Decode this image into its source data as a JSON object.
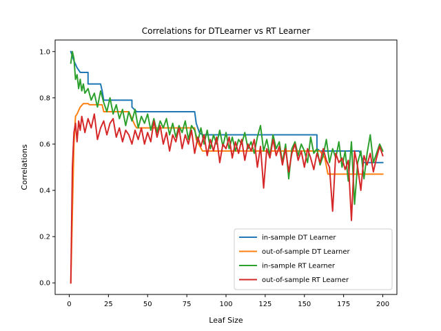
{
  "chart_data": {
    "type": "line",
    "title": "Correlations for DTLearner vs RT Learner",
    "xlabel": "Leaf Size",
    "ylabel": "Correlations",
    "xlim": [
      -9,
      209
    ],
    "ylim": [
      -0.05,
      1.05
    ],
    "xticks": [
      0,
      25,
      50,
      75,
      100,
      125,
      150,
      175,
      200
    ],
    "yticks": [
      0.0,
      0.2,
      0.4,
      0.6,
      0.8,
      1.0
    ],
    "xtick_labels": [
      "0",
      "25",
      "50",
      "75",
      "100",
      "125",
      "150",
      "175",
      "200"
    ],
    "ytick_labels": [
      "0.0",
      "0.2",
      "0.4",
      "0.6",
      "0.8",
      "1.0"
    ],
    "grid": false,
    "legend_position": "lower-right",
    "series": [
      {
        "name": "in-sample DT Learner",
        "color": "#1f77b4",
        "points": [
          [
            1,
            1.0
          ],
          [
            3,
            0.96
          ],
          [
            5,
            0.93
          ],
          [
            7,
            0.91
          ],
          [
            12,
            0.91
          ],
          [
            12,
            0.86
          ],
          [
            20,
            0.86
          ],
          [
            21,
            0.83
          ],
          [
            22,
            0.79
          ],
          [
            40,
            0.79
          ],
          [
            40,
            0.76
          ],
          [
            43,
            0.74
          ],
          [
            80,
            0.74
          ],
          [
            81,
            0.69
          ],
          [
            83,
            0.65
          ],
          [
            85,
            0.64
          ],
          [
            158,
            0.64
          ],
          [
            158,
            0.58
          ],
          [
            160,
            0.57
          ],
          [
            185,
            0.57
          ],
          [
            188,
            0.52
          ],
          [
            200,
            0.52
          ]
        ]
      },
      {
        "name": "out-of-sample DT Learner",
        "color": "#ff7f0e",
        "points": [
          [
            1,
            0.0
          ],
          [
            3,
            0.6
          ],
          [
            4,
            0.72
          ],
          [
            5,
            0.73
          ],
          [
            7,
            0.76
          ],
          [
            9,
            0.775
          ],
          [
            12,
            0.775
          ],
          [
            13,
            0.77
          ],
          [
            21,
            0.77
          ],
          [
            22,
            0.74
          ],
          [
            38,
            0.74
          ],
          [
            40,
            0.71
          ],
          [
            42,
            0.68
          ],
          [
            43,
            0.67
          ],
          [
            80,
            0.67
          ],
          [
            81,
            0.62
          ],
          [
            85,
            0.57
          ],
          [
            160,
            0.57
          ],
          [
            163,
            0.54
          ],
          [
            165,
            0.47
          ],
          [
            200,
            0.47
          ]
        ]
      },
      {
        "name": "in-sample RT Learner",
        "color": "#2ca02c",
        "points": [
          [
            1,
            0.95
          ],
          [
            2,
            1.0
          ],
          [
            3,
            0.97
          ],
          [
            4,
            0.88
          ],
          [
            5,
            0.9
          ],
          [
            6,
            0.84
          ],
          [
            7,
            0.88
          ],
          [
            8,
            0.83
          ],
          [
            9,
            0.86
          ],
          [
            10,
            0.82
          ],
          [
            12,
            0.84
          ],
          [
            14,
            0.79
          ],
          [
            16,
            0.82
          ],
          [
            18,
            0.76
          ],
          [
            20,
            0.83
          ],
          [
            22,
            0.78
          ],
          [
            24,
            0.74
          ],
          [
            26,
            0.8
          ],
          [
            28,
            0.73
          ],
          [
            30,
            0.77
          ],
          [
            32,
            0.71
          ],
          [
            34,
            0.75
          ],
          [
            36,
            0.68
          ],
          [
            38,
            0.74
          ],
          [
            40,
            0.7
          ],
          [
            42,
            0.75
          ],
          [
            44,
            0.67
          ],
          [
            46,
            0.72
          ],
          [
            48,
            0.69
          ],
          [
            50,
            0.73
          ],
          [
            52,
            0.66
          ],
          [
            54,
            0.71
          ],
          [
            56,
            0.65
          ],
          [
            58,
            0.7
          ],
          [
            60,
            0.67
          ],
          [
            62,
            0.71
          ],
          [
            64,
            0.64
          ],
          [
            66,
            0.69
          ],
          [
            68,
            0.63
          ],
          [
            70,
            0.68
          ],
          [
            72,
            0.65
          ],
          [
            74,
            0.7
          ],
          [
            76,
            0.62
          ],
          [
            78,
            0.68
          ],
          [
            80,
            0.66
          ],
          [
            82,
            0.61
          ],
          [
            84,
            0.67
          ],
          [
            86,
            0.6
          ],
          [
            88,
            0.66
          ],
          [
            90,
            0.58
          ],
          [
            92,
            0.64
          ],
          [
            94,
            0.6
          ],
          [
            96,
            0.66
          ],
          [
            98,
            0.59
          ],
          [
            100,
            0.65
          ],
          [
            102,
            0.58
          ],
          [
            104,
            0.63
          ],
          [
            106,
            0.57
          ],
          [
            108,
            0.62
          ],
          [
            110,
            0.6
          ],
          [
            112,
            0.65
          ],
          [
            114,
            0.58
          ],
          [
            116,
            0.61
          ],
          [
            118,
            0.56
          ],
          [
            120,
            0.63
          ],
          [
            122,
            0.68
          ],
          [
            124,
            0.57
          ],
          [
            126,
            0.62
          ],
          [
            128,
            0.55
          ],
          [
            130,
            0.64
          ],
          [
            132,
            0.58
          ],
          [
            134,
            0.61
          ],
          [
            136,
            0.52
          ],
          [
            138,
            0.6
          ],
          [
            140,
            0.45
          ],
          [
            142,
            0.58
          ],
          [
            144,
            0.61
          ],
          [
            146,
            0.55
          ],
          [
            148,
            0.6
          ],
          [
            150,
            0.57
          ],
          [
            152,
            0.52
          ],
          [
            154,
            0.63
          ],
          [
            156,
            0.56
          ],
          [
            158,
            0.58
          ],
          [
            160,
            0.51
          ],
          [
            162,
            0.55
          ],
          [
            164,
            0.62
          ],
          [
            166,
            0.52
          ],
          [
            168,
            0.58
          ],
          [
            170,
            0.54
          ],
          [
            172,
            0.61
          ],
          [
            174,
            0.5
          ],
          [
            176,
            0.57
          ],
          [
            178,
            0.44
          ],
          [
            180,
            0.61
          ],
          [
            182,
            0.34
          ],
          [
            184,
            0.52
          ],
          [
            186,
            0.57
          ],
          [
            188,
            0.45
          ],
          [
            190,
            0.56
          ],
          [
            192,
            0.64
          ],
          [
            194,
            0.52
          ],
          [
            196,
            0.56
          ],
          [
            198,
            0.6
          ],
          [
            200,
            0.57
          ]
        ]
      },
      {
        "name": "out-of-sample RT Learner",
        "color": "#d62728",
        "points": [
          [
            1,
            0.0
          ],
          [
            2,
            0.5
          ],
          [
            3,
            0.65
          ],
          [
            4,
            0.69
          ],
          [
            5,
            0.61
          ],
          [
            6,
            0.7
          ],
          [
            7,
            0.66
          ],
          [
            8,
            0.72
          ],
          [
            10,
            0.65
          ],
          [
            12,
            0.71
          ],
          [
            14,
            0.67
          ],
          [
            16,
            0.73
          ],
          [
            18,
            0.62
          ],
          [
            20,
            0.67
          ],
          [
            22,
            0.7
          ],
          [
            24,
            0.64
          ],
          [
            26,
            0.69
          ],
          [
            28,
            0.71
          ],
          [
            30,
            0.63
          ],
          [
            32,
            0.67
          ],
          [
            34,
            0.61
          ],
          [
            36,
            0.66
          ],
          [
            38,
            0.64
          ],
          [
            40,
            0.6
          ],
          [
            42,
            0.66
          ],
          [
            44,
            0.62
          ],
          [
            46,
            0.67
          ],
          [
            48,
            0.6
          ],
          [
            50,
            0.65
          ],
          [
            52,
            0.61
          ],
          [
            54,
            0.7
          ],
          [
            56,
            0.63
          ],
          [
            58,
            0.68
          ],
          [
            60,
            0.6
          ],
          [
            62,
            0.65
          ],
          [
            64,
            0.57
          ],
          [
            66,
            0.64
          ],
          [
            68,
            0.61
          ],
          [
            70,
            0.67
          ],
          [
            72,
            0.58
          ],
          [
            74,
            0.64
          ],
          [
            76,
            0.6
          ],
          [
            78,
            0.66
          ],
          [
            80,
            0.56
          ],
          [
            82,
            0.63
          ],
          [
            84,
            0.59
          ],
          [
            86,
            0.64
          ],
          [
            88,
            0.55
          ],
          [
            90,
            0.62
          ],
          [
            92,
            0.57
          ],
          [
            94,
            0.63
          ],
          [
            96,
            0.52
          ],
          [
            98,
            0.6
          ],
          [
            100,
            0.58
          ],
          [
            102,
            0.63
          ],
          [
            104,
            0.54
          ],
          [
            106,
            0.61
          ],
          [
            108,
            0.56
          ],
          [
            110,
            0.62
          ],
          [
            112,
            0.53
          ],
          [
            114,
            0.6
          ],
          [
            116,
            0.57
          ],
          [
            118,
            0.62
          ],
          [
            120,
            0.5
          ],
          [
            122,
            0.59
          ],
          [
            124,
            0.41
          ],
          [
            126,
            0.58
          ],
          [
            128,
            0.54
          ],
          [
            130,
            0.62
          ],
          [
            132,
            0.55
          ],
          [
            134,
            0.59
          ],
          [
            136,
            0.51
          ],
          [
            138,
            0.58
          ],
          [
            140,
            0.48
          ],
          [
            142,
            0.56
          ],
          [
            144,
            0.6
          ],
          [
            146,
            0.53
          ],
          [
            148,
            0.57
          ],
          [
            150,
            0.5
          ],
          [
            152,
            0.58
          ],
          [
            154,
            0.54
          ],
          [
            156,
            0.49
          ],
          [
            158,
            0.56
          ],
          [
            160,
            0.52
          ],
          [
            162,
            0.58
          ],
          [
            164,
            0.53
          ],
          [
            166,
            0.5
          ],
          [
            168,
            0.31
          ],
          [
            170,
            0.56
          ],
          [
            172,
            0.52
          ],
          [
            174,
            0.54
          ],
          [
            176,
            0.49
          ],
          [
            178,
            0.53
          ],
          [
            180,
            0.27
          ],
          [
            182,
            0.57
          ],
          [
            184,
            0.5
          ],
          [
            186,
            0.4
          ],
          [
            188,
            0.55
          ],
          [
            190,
            0.51
          ],
          [
            192,
            0.56
          ],
          [
            194,
            0.48
          ],
          [
            196,
            0.54
          ],
          [
            198,
            0.59
          ],
          [
            200,
            0.55
          ]
        ]
      }
    ]
  }
}
